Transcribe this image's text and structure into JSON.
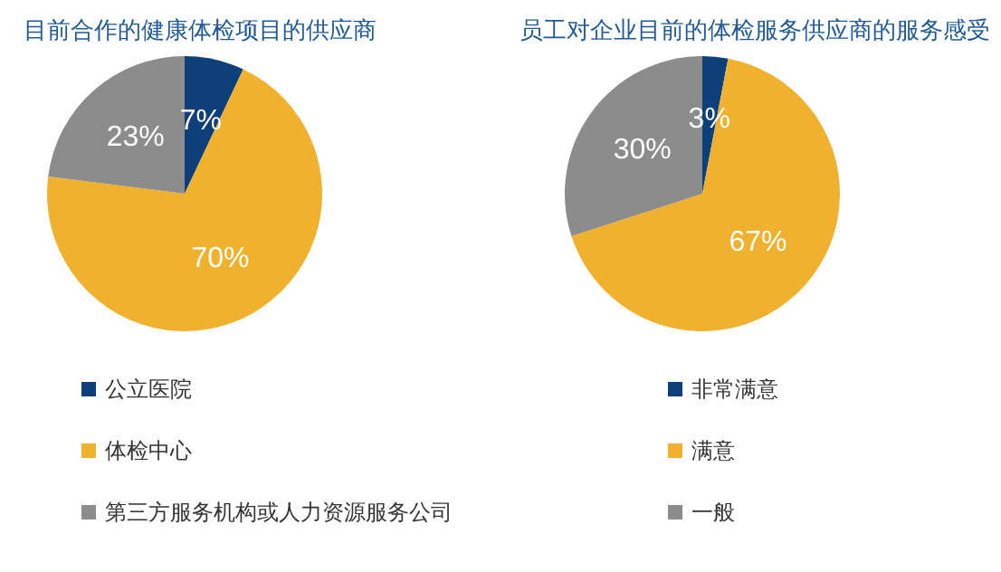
{
  "chart_data": [
    {
      "type": "pie",
      "title": "目前合作的健康体检项目的供应商",
      "categories": [
        "公立医院",
        "体检中心",
        "第三方服务机构或人力资源服务公司"
      ],
      "values": [
        7,
        70,
        23
      ],
      "value_labels": [
        "7%",
        "70%",
        "23%"
      ],
      "colors": [
        "#0d3f7a",
        "#f0b12f",
        "#8c8c8c"
      ],
      "legend": "bottom"
    },
    {
      "type": "pie",
      "title": "员工对企业目前的体检服务供应商的服务感受",
      "categories": [
        "非常满意",
        "满意",
        "一般"
      ],
      "values": [
        3,
        67,
        30
      ],
      "value_labels": [
        "3%",
        "67%",
        "30%"
      ],
      "colors": [
        "#0d3f7a",
        "#f0b12f",
        "#8c8c8c"
      ],
      "legend": "bottom"
    }
  ]
}
